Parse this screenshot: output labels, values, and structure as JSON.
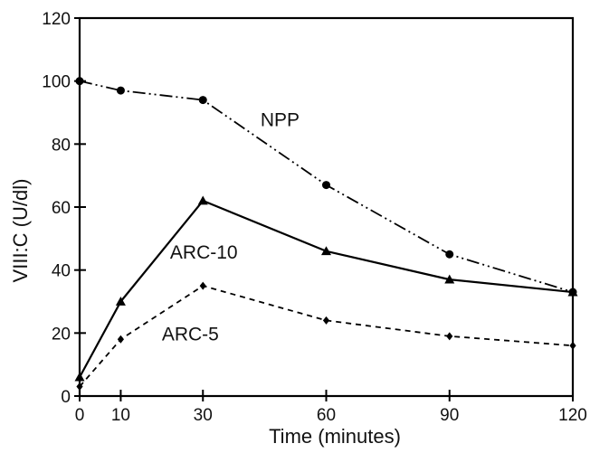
{
  "chart_data": {
    "type": "line",
    "xlabel": "Time (minutes)",
    "ylabel": "VIII:C (U/dl)",
    "xlim": [
      0,
      120
    ],
    "ylim": [
      0,
      120
    ],
    "x_ticks": [
      0,
      10,
      30,
      60,
      90,
      120
    ],
    "y_ticks": [
      0,
      20,
      40,
      60,
      80,
      100,
      120
    ],
    "x_tick_labels": [
      "0",
      "10",
      "30",
      "60",
      "90",
      "120"
    ],
    "y_tick_labels": [
      "0",
      "20",
      "40",
      "60",
      "80",
      "100",
      "120"
    ],
    "grid": false,
    "legend": "none (series labeled inline)",
    "series": [
      {
        "name": "NPP",
        "marker": "circle",
        "line_style": "dash-dot-dot",
        "x": [
          0,
          10,
          30,
          60,
          90,
          120
        ],
        "y": [
          100,
          97,
          94,
          67,
          45,
          33
        ]
      },
      {
        "name": "ARC-10",
        "marker": "triangle",
        "line_style": "solid",
        "x": [
          0,
          10,
          30,
          60,
          90,
          120
        ],
        "y": [
          6,
          30,
          62,
          46,
          37,
          33
        ]
      },
      {
        "name": "ARC-5",
        "marker": "diamond",
        "line_style": "dashed",
        "x": [
          0,
          10,
          30,
          60,
          90,
          120
        ],
        "y": [
          3,
          18,
          35,
          24,
          19,
          16
        ]
      }
    ]
  }
}
